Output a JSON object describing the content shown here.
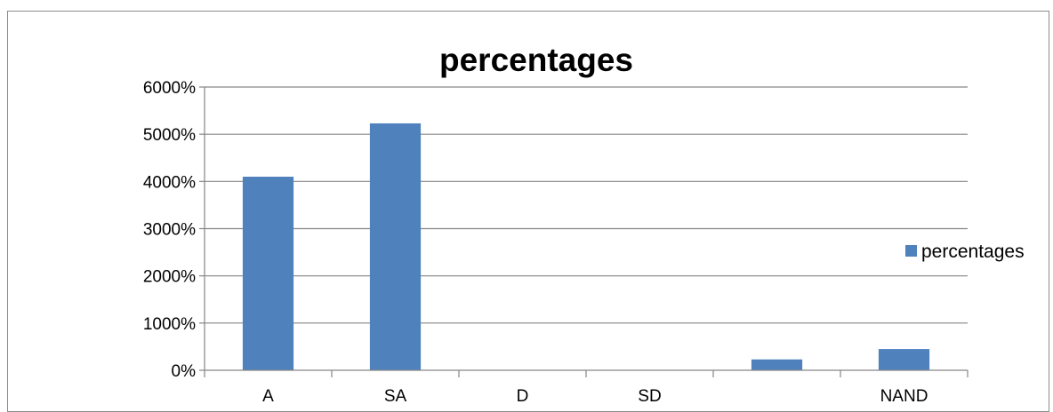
{
  "chart_data": {
    "type": "bar",
    "title": "percentages",
    "xlabel": "",
    "ylabel": "",
    "categories": [
      "A",
      "SA",
      "D",
      "SD",
      "",
      "NAND"
    ],
    "series": [
      {
        "name": "percentages",
        "values": [
          4100,
          5230,
          0,
          0,
          230,
          450
        ],
        "color": "#4f81bd"
      }
    ],
    "ylim": [
      0,
      6000
    ],
    "yticks": [
      "0%",
      "1000%",
      "2000%",
      "3000%",
      "4000%",
      "5000%",
      "6000%"
    ],
    "grid": true,
    "legend_position": "right"
  }
}
